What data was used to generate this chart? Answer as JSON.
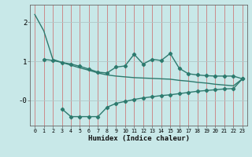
{
  "xlabel": "Humidex (Indice chaleur)",
  "bg_color": "#c8e8e8",
  "line_color": "#2d7a6e",
  "grid_color_h": "#b0c8c8",
  "grid_color_v": "#e08080",
  "ylim": [
    -0.65,
    2.45
  ],
  "xlim": [
    -0.5,
    23.5
  ],
  "line_width": 1.0,
  "marker": "D",
  "marker_size": 2.2,
  "smooth_x": [
    0,
    1,
    2,
    3,
    4,
    5,
    6,
    7,
    8,
    9,
    10,
    11,
    12,
    13,
    14,
    15,
    16,
    17,
    18,
    19,
    20,
    21,
    22,
    23
  ],
  "smooth_y": [
    2.2,
    1.78,
    1.05,
    0.97,
    0.9,
    0.83,
    0.77,
    0.7,
    0.65,
    0.62,
    0.6,
    0.58,
    0.57,
    0.56,
    0.55,
    0.54,
    0.51,
    0.49,
    0.46,
    0.44,
    0.41,
    0.39,
    0.37,
    0.55
  ],
  "upper_x": [
    1,
    2,
    3,
    4,
    5,
    6,
    7,
    8,
    9,
    10,
    11,
    12,
    13,
    14,
    15,
    16,
    17,
    18,
    19,
    20,
    21,
    22,
    23
  ],
  "upper_y": [
    1.05,
    1.02,
    0.97,
    0.93,
    0.87,
    0.8,
    0.72,
    0.7,
    0.85,
    0.88,
    1.18,
    0.93,
    1.05,
    1.02,
    1.2,
    0.82,
    0.68,
    0.65,
    0.63,
    0.62,
    0.62,
    0.62,
    0.55
  ],
  "lower_x": [
    3,
    4,
    5,
    6,
    7,
    8,
    9,
    10,
    11,
    12,
    13,
    14,
    15,
    16,
    17,
    18,
    19,
    20,
    21,
    22,
    23
  ],
  "lower_y": [
    -0.22,
    -0.42,
    -0.42,
    -0.42,
    -0.42,
    -0.18,
    -0.08,
    -0.03,
    0.02,
    0.06,
    0.09,
    0.12,
    0.14,
    0.17,
    0.2,
    0.23,
    0.25,
    0.27,
    0.29,
    0.3,
    0.55
  ],
  "yticks": [
    2,
    1,
    0
  ],
  "ytick_labels": [
    "2",
    "1",
    "-0"
  ]
}
